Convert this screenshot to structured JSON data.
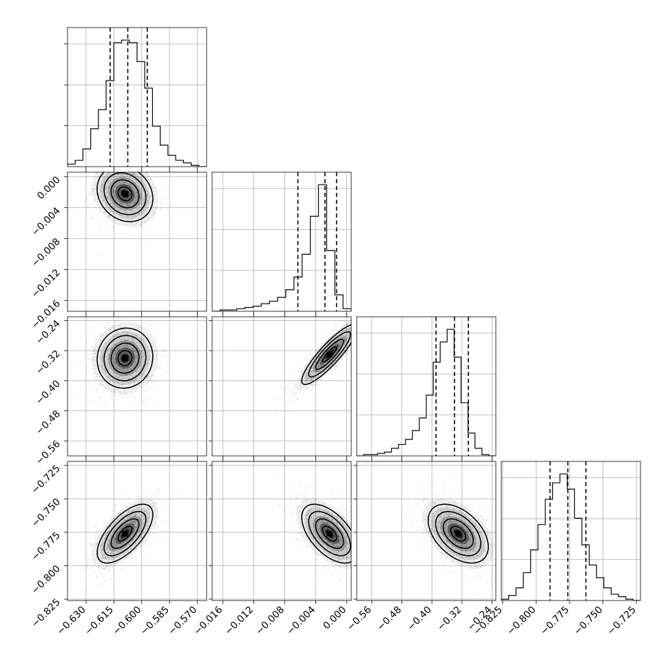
{
  "chart_data": {
    "type": "corner",
    "title": "",
    "n_params": 4,
    "parameters": [
      {
        "label": "",
        "range": [
          -0.64,
          -0.565
        ],
        "ticks": [
          -0.63,
          -0.615,
          -0.6,
          -0.585,
          -0.57
        ],
        "tick_labels": [
          "−0.630",
          "−0.615",
          "−0.600",
          "−0.585",
          "−0.570"
        ],
        "quantiles": [
          -0.617,
          -0.6075,
          -0.597
        ],
        "mode": -0.609,
        "hist_counts": [
          2,
          5,
          14,
          30,
          45,
          68,
          98,
          100,
          98,
          83,
          62,
          32,
          17,
          9,
          5,
          3,
          1,
          0
        ]
      },
      {
        "label": "",
        "range": [
          -0.0174,
          0.0006
        ],
        "ticks": [
          -0.016,
          -0.012,
          -0.008,
          -0.004,
          0.0
        ],
        "tick_labels": [
          "−0.016",
          "−0.012",
          "−0.008",
          "−0.004",
          "0.000"
        ],
        "quantiles": [
          -0.0063,
          -0.0028,
          -0.0013
        ],
        "mode": -0.0022,
        "hist_counts": [
          0,
          1,
          1,
          2,
          3,
          4,
          6,
          8,
          11,
          17,
          27,
          45,
          75,
          100,
          48,
          13,
          2
        ]
      },
      {
        "label": "",
        "range": [
          -0.6,
          -0.23
        ],
        "ticks": [
          -0.56,
          -0.48,
          -0.4,
          -0.32,
          -0.24
        ],
        "tick_labels": [
          "−0.56",
          "−0.48",
          "−0.40",
          "−0.32",
          "−0.24"
        ],
        "quantiles": [
          -0.389,
          -0.34,
          -0.303
        ],
        "mode": -0.33,
        "hist_counts": [
          0,
          1,
          1,
          2,
          3,
          6,
          9,
          13,
          20,
          30,
          48,
          74,
          90,
          100,
          78,
          42,
          18,
          6,
          1,
          0
        ]
      },
      {
        "label": "",
        "range": [
          -0.826,
          -0.722
        ],
        "ticks": [
          -0.825,
          -0.8,
          -0.775,
          -0.75,
          -0.725
        ],
        "tick_labels": [
          "−0.825",
          "−0.800",
          "−0.775",
          "−0.750",
          "−0.725"
        ],
        "quantiles": [
          -0.7896,
          -0.7763,
          -0.7628
        ],
        "mode": -0.775,
        "hist_counts": [
          1,
          4,
          10,
          22,
          40,
          60,
          80,
          93,
          100,
          88,
          65,
          44,
          28,
          18,
          10,
          5,
          3,
          1,
          0
        ]
      }
    ],
    "pairs": [
      {
        "i": 1,
        "j": 0,
        "mean": [
          -0.609,
          -0.0022
        ],
        "sd": [
          0.0075,
          0.0018
        ],
        "rho": -0.18
      },
      {
        "i": 2,
        "j": 0,
        "mean": [
          -0.609,
          -0.34
        ],
        "sd": [
          0.0075,
          0.04
        ],
        "rho": 0.05
      },
      {
        "i": 2,
        "j": 1,
        "mean": [
          -0.0022,
          -0.33
        ],
        "sd": [
          0.0018,
          0.04
        ],
        "rho": 0.88
      },
      {
        "i": 3,
        "j": 0,
        "mean": [
          -0.609,
          -0.776
        ],
        "sd": [
          0.0075,
          0.011
        ],
        "rho": 0.65
      },
      {
        "i": 3,
        "j": 1,
        "mean": [
          -0.0022,
          -0.776
        ],
        "sd": [
          0.0018,
          0.011
        ],
        "rho": -0.55
      },
      {
        "i": 3,
        "j": 2,
        "mean": [
          -0.33,
          -0.776
        ],
        "sd": [
          0.04,
          0.011
        ],
        "rho": -0.45
      }
    ],
    "grid": true,
    "quantile_style": "dashed",
    "contour_levels": 4,
    "colors": {
      "line": "#000000",
      "grid": "#b0b0b0",
      "density": "#000000",
      "points": "#000000"
    }
  }
}
